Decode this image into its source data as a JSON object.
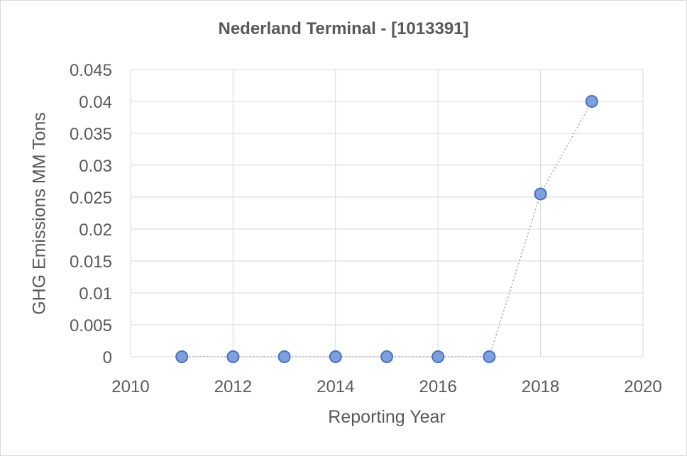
{
  "chart_data": {
    "type": "scatter",
    "title": "Nederland Terminal - [1013391]",
    "xlabel": "Reporting Year",
    "ylabel": "GHG Emissions MM Tons",
    "xlim": [
      2010,
      2020
    ],
    "ylim": [
      0,
      0.045
    ],
    "xticks": [
      "2010",
      "2012",
      "2014",
      "2016",
      "2018",
      "2020"
    ],
    "yticks": [
      "0",
      "0.005",
      "0.01",
      "0.015",
      "0.02",
      "0.025",
      "0.03",
      "0.035",
      "0.04",
      "0.045"
    ],
    "grid": true,
    "trendline": "dotted",
    "colors": {
      "marker_fill": "#7f9fdc",
      "marker_stroke": "#4472c4",
      "line": "#a6a6a6",
      "grid": "#d9d9d9"
    },
    "series": [
      {
        "x": [
          2011,
          2012,
          2013,
          2014,
          2015,
          2016,
          2017,
          2018,
          2019
        ],
        "y": [
          0,
          0,
          0,
          0,
          0,
          0,
          0,
          0.0255,
          0.04
        ]
      }
    ]
  }
}
